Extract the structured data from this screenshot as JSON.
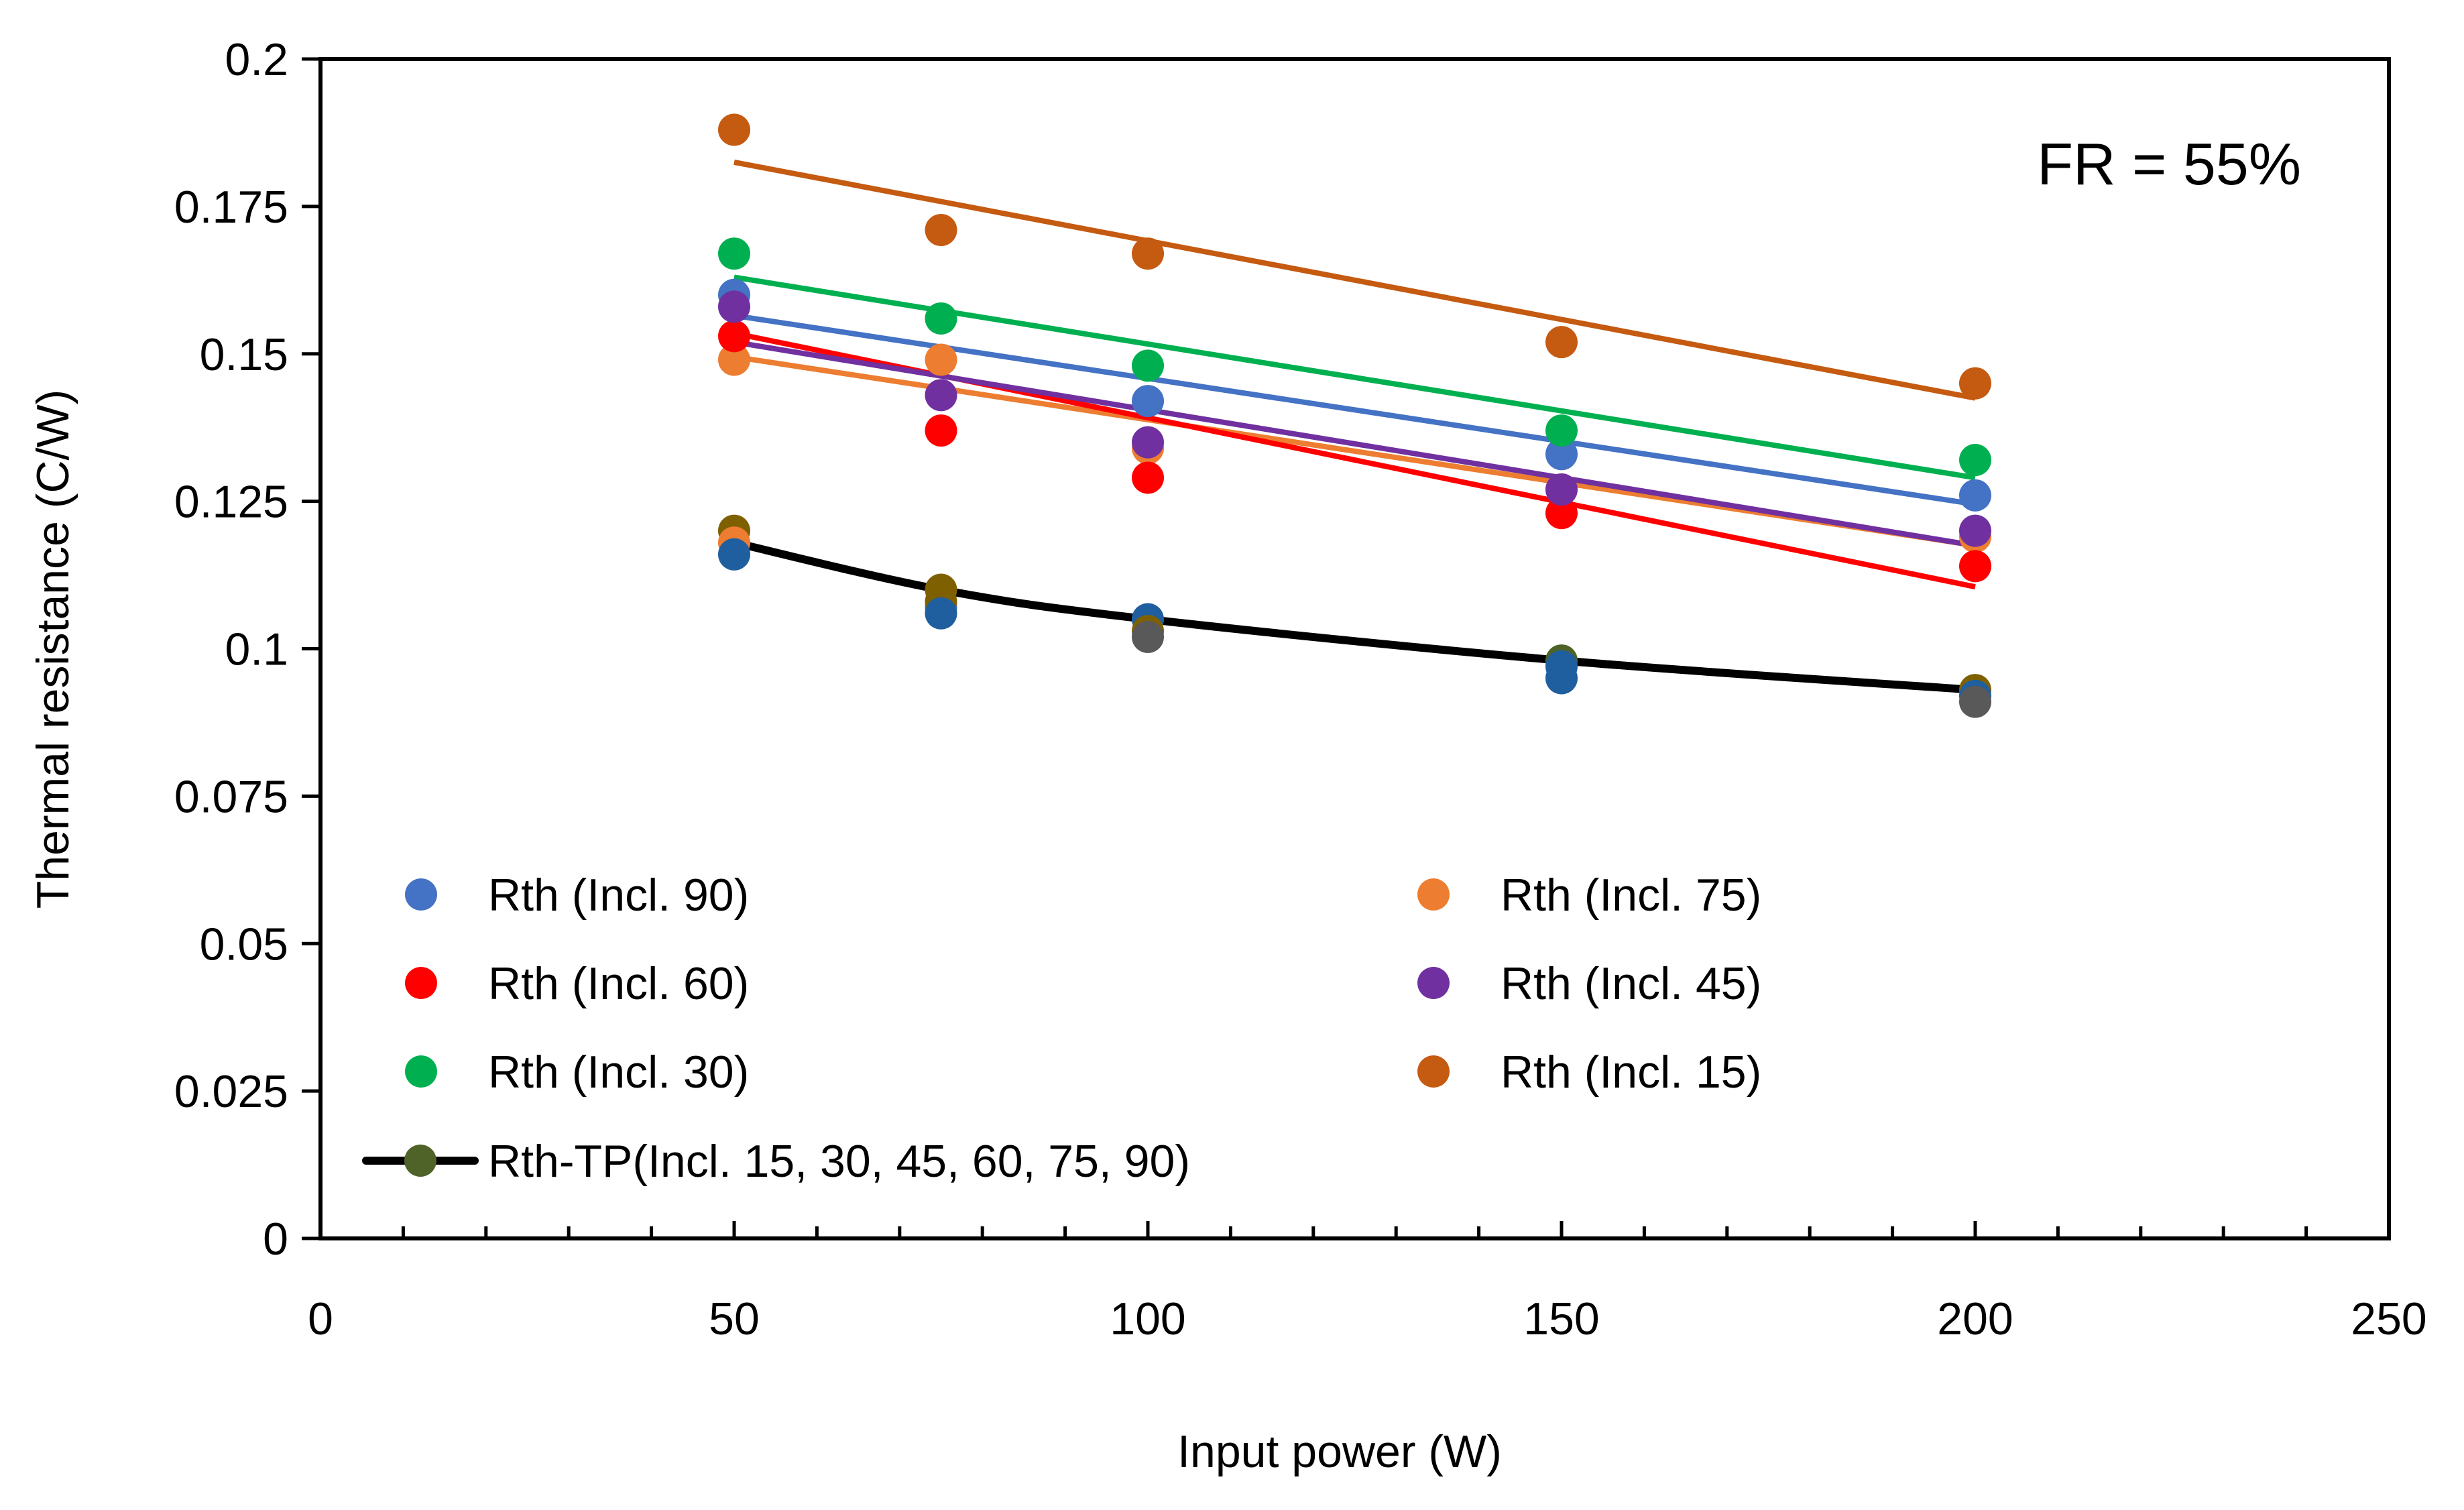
{
  "chart_data": {
    "type": "scatter",
    "title": "",
    "xlabel": "Input power (W)",
    "ylabel": "Thermal resistance (C/W)",
    "xlim": [
      0,
      250
    ],
    "ylim": [
      0,
      0.2
    ],
    "x_ticks": [
      0,
      50,
      100,
      150,
      200,
      250
    ],
    "y_ticks": [
      0,
      0.025,
      0.05,
      0.075,
      0.1,
      0.125,
      0.15,
      0.175,
      0.2
    ],
    "x_tick_labels": [
      "0",
      "50",
      "100",
      "150",
      "200",
      "250"
    ],
    "y_tick_labels": [
      "0",
      "0.025",
      "0.05",
      "0.075",
      "0.1",
      "0.125",
      "0.15",
      "0.175",
      "0.2"
    ],
    "grid": false,
    "legend_position": "bottom-left",
    "annotation": "FR = 55%",
    "x": [
      50,
      75,
      100,
      150,
      200
    ],
    "series": [
      {
        "name": "Rth (Incl. 90)",
        "color": "#4472C4",
        "values": [
          0.16,
          0.107,
          0.142,
          0.133,
          0.126
        ],
        "trend": [
          0.1565,
          0.1245
        ]
      },
      {
        "name": "Rth (Incl. 75)",
        "color": "#ED7D31",
        "values": [
          0.149,
          0.149,
          0.134,
          0.127,
          0.119
        ],
        "trend": [
          0.1495,
          0.1175
        ]
      },
      {
        "name": "Rth (Incl. 60)",
        "color": "#FF0000",
        "values": [
          0.153,
          0.137,
          0.129,
          0.123,
          0.114
        ],
        "trend": [
          0.1535,
          0.1105
        ]
      },
      {
        "name": "Rth (Incl. 45)",
        "color": "#7030A0",
        "values": [
          0.158,
          0.143,
          0.135,
          0.127,
          0.12
        ],
        "trend": [
          0.152,
          0.1175
        ]
      },
      {
        "name": "Rth (Incl. 30)",
        "color": "#00B050",
        "values": [
          0.167,
          0.156,
          0.148,
          0.137,
          0.132
        ],
        "trend": [
          0.163,
          0.129
        ]
      },
      {
        "name": "Rth (Incl. 15)",
        "color": "#C55A11",
        "values": [
          0.188,
          0.171,
          0.167,
          0.152,
          0.145
        ],
        "trend": [
          0.1825,
          0.1425
        ]
      }
    ],
    "tp_series": {
      "name": "Rth-TP(Incl. 15, 30, 45, 60, 75, 90)",
      "line_color": "#000000",
      "marker_color": "#4F6228",
      "x": [
        50,
        75,
        100,
        150,
        200
      ],
      "values": [
        0.118,
        0.11,
        0.105,
        0.098,
        0.093
      ],
      "markers": [
        {
          "x": 50,
          "ys": [
            0.12,
            0.118,
            0.116
          ],
          "colors": [
            "#7F6000",
            "#ED7D31",
            "#1F5F9F"
          ]
        },
        {
          "x": 75,
          "ys": [
            0.11,
            0.108,
            0.106
          ],
          "colors": [
            "#7F6000",
            "#7F6000",
            "#1F5F9F"
          ]
        },
        {
          "x": 100,
          "ys": [
            0.105,
            0.103,
            0.102
          ],
          "colors": [
            "#1F5F9F",
            "#7F6000",
            "#595959"
          ]
        },
        {
          "x": 150,
          "ys": [
            0.098,
            0.097,
            0.095
          ],
          "colors": [
            "#4F6228",
            "#1F5F9F",
            "#1F5F9F"
          ]
        },
        {
          "x": 200,
          "ys": [
            0.093,
            0.092,
            0.091
          ],
          "colors": [
            "#7F6000",
            "#1F5F9F",
            "#595959"
          ]
        }
      ]
    }
  }
}
